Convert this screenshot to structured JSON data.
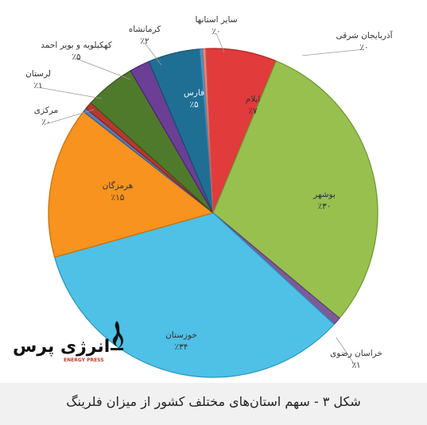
{
  "chart_data": {
    "type": "pie",
    "title": "",
    "slices": [
      {
        "label": "ایلام",
        "value_label": "٪۷",
        "value": 7,
        "color": "#e23b3b",
        "edge": "#b22424",
        "label_inside": true
      },
      {
        "label": "بوشهر",
        "value_label": "٪۳۰",
        "value": 30,
        "color": "#97c04f",
        "edge": "#6f9533",
        "label_inside": true
      },
      {
        "label": "خراسان رضوی",
        "value_label": "٪۱",
        "value": 0.8,
        "color": "#7c5b9a",
        "edge": "#5c3f77",
        "label_inside": false
      },
      {
        "label": "خوزستان",
        "value_label": "٪۳۴",
        "value": 34,
        "color": "#4fc0e6",
        "edge": "#2d95bb",
        "label_inside": true
      },
      {
        "label": "هرمزگان",
        "value_label": "٪۱۵",
        "value": 15,
        "color": "#f7931e",
        "edge": "#c86f0a",
        "label_inside": true
      },
      {
        "label": "مرکزی",
        "value_label": "٪۰",
        "value": 0.4,
        "color": "#5a7bb0",
        "edge": "#3a5b90",
        "label_inside": false
      },
      {
        "label": "لرستان",
        "value_label": "٪۱",
        "value": 0.7,
        "color": "#b6392f",
        "edge": "#8a2019",
        "label_inside": false
      },
      {
        "label": "کهکیلویه و بویر احمد",
        "value_label": "٪۵",
        "value": 5,
        "color": "#4f7a2b",
        "edge": "#34561a",
        "label_inside": false
      },
      {
        "label": "کرمانشاه",
        "value_label": "٪۲",
        "value": 2,
        "color": "#6b3f96",
        "edge": "#4a2573",
        "label_inside": false
      },
      {
        "label": "فارس",
        "value_label": "٪۵",
        "value": 5.1,
        "color": "#1f6f94",
        "edge": "#14506d",
        "label_inside": true
      },
      {
        "label": "سایر استانها",
        "value_label": "٪۰",
        "value": 0.3,
        "color": "#3a9ad0",
        "edge": "#2a7aaa",
        "label_inside": false
      },
      {
        "label": "آذربایجان شرقی",
        "value_label": "٪۰",
        "value": 0.3,
        "color": "#e8867d",
        "edge": "#c0625a",
        "label_inside": false
      }
    ],
    "legend": "none"
  },
  "caption": "شکل ۳ - سهم استان‌های مختلف کشور از میزان فلرینگ",
  "logo": {
    "name": "انرژی پرس",
    "sub": "ENERGY PRESS"
  }
}
